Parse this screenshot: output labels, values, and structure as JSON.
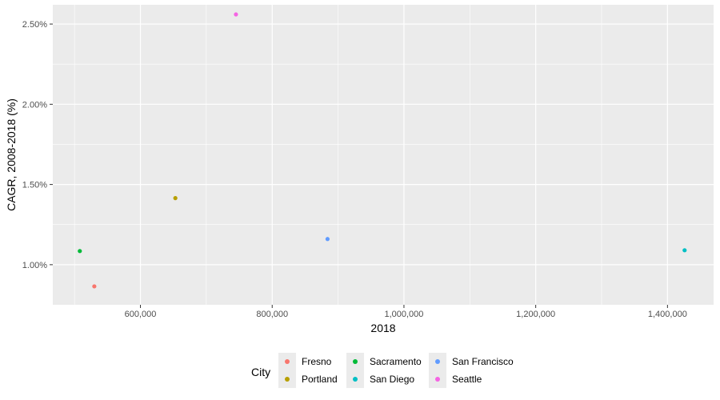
{
  "chart_data": {
    "type": "scatter",
    "xlabel": "2018",
    "ylabel": "CAGR, 2008-2018 (%)",
    "xlim": [
      467000,
      1470000
    ],
    "ylim": [
      0.75,
      2.62
    ],
    "x_ticks": [
      600000,
      800000,
      1000000,
      1200000,
      1400000
    ],
    "x_tick_labels": [
      "600,000",
      "800,000",
      "1,000,000",
      "1,200,000",
      "1,400,000"
    ],
    "y_ticks": [
      1.0,
      1.5,
      2.0,
      2.5
    ],
    "y_tick_labels": [
      "1.00%",
      "1.50%",
      "2.00%",
      "2.50%"
    ],
    "grid": true,
    "legend_title": "City",
    "legend_position": "bottom",
    "series": [
      {
        "name": "Fresno",
        "color": "#F8766D",
        "x": 530000,
        "y": 0.865
      },
      {
        "name": "Portland",
        "color": "#B79F00",
        "x": 653000,
        "y": 1.415
      },
      {
        "name": "Sacramento",
        "color": "#00BA38",
        "x": 508000,
        "y": 1.085
      },
      {
        "name": "San Diego",
        "color": "#00BFC4",
        "x": 1426000,
        "y": 1.09
      },
      {
        "name": "San Francisco",
        "color": "#619CFF",
        "x": 884000,
        "y": 1.16
      },
      {
        "name": "Seattle",
        "color": "#F564E3",
        "x": 745000,
        "y": 2.56
      }
    ]
  }
}
